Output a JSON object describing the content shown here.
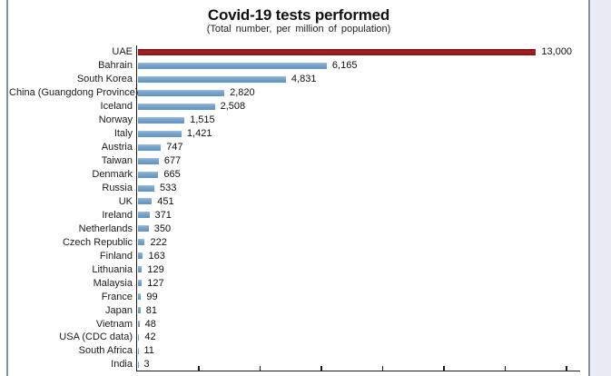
{
  "page": {
    "background_color": "#ffffff",
    "side_strip_color": "#e9ecf5",
    "divider_color": "#878ea0"
  },
  "chart_data": {
    "type": "bar",
    "orientation": "horizontal",
    "title": "Covid-19 tests performed",
    "subtitle": "(Total  number,  per  million  of  population)",
    "categories": [
      "UAE",
      "Bahrain",
      "South Korea",
      "China (Guangdong Province)",
      "Iceland",
      "Norway",
      "Italy",
      "Austria",
      "Taiwan",
      "Denmark",
      "Russia",
      "UK",
      "Ireland",
      "Netherlands",
      "Czech Republic",
      "Finland",
      "Lithuania",
      "Malaysia",
      "France",
      "Japan",
      "Vietnam",
      "USA (CDC data)",
      "South Africa",
      "India"
    ],
    "values": [
      13000,
      6165,
      4831,
      2820,
      2508,
      1515,
      1421,
      747,
      677,
      665,
      533,
      451,
      371,
      350,
      222,
      163,
      129,
      127,
      99,
      81,
      48,
      42,
      11,
      3
    ],
    "value_labels": [
      "13,000",
      "6,165",
      "4,831",
      "2,820",
      "2,508",
      "1,515",
      "1,421",
      "747",
      "677",
      "665",
      "533",
      "451",
      "371",
      "350",
      "222",
      "163",
      "129",
      "127",
      "99",
      "81",
      "48",
      "42",
      "11",
      "3"
    ],
    "highlight_index": 0,
    "highlight_color": "#9e1b1e",
    "bar_color": "#6f9fc9",
    "axis_color": "#1a1a1a",
    "xlabel": "",
    "ylabel": "",
    "axis": {
      "xmin": 0,
      "xmax": 14500,
      "tick_interval": 2000,
      "tick_labels_visible": false
    },
    "grid": false,
    "legend": null
  }
}
